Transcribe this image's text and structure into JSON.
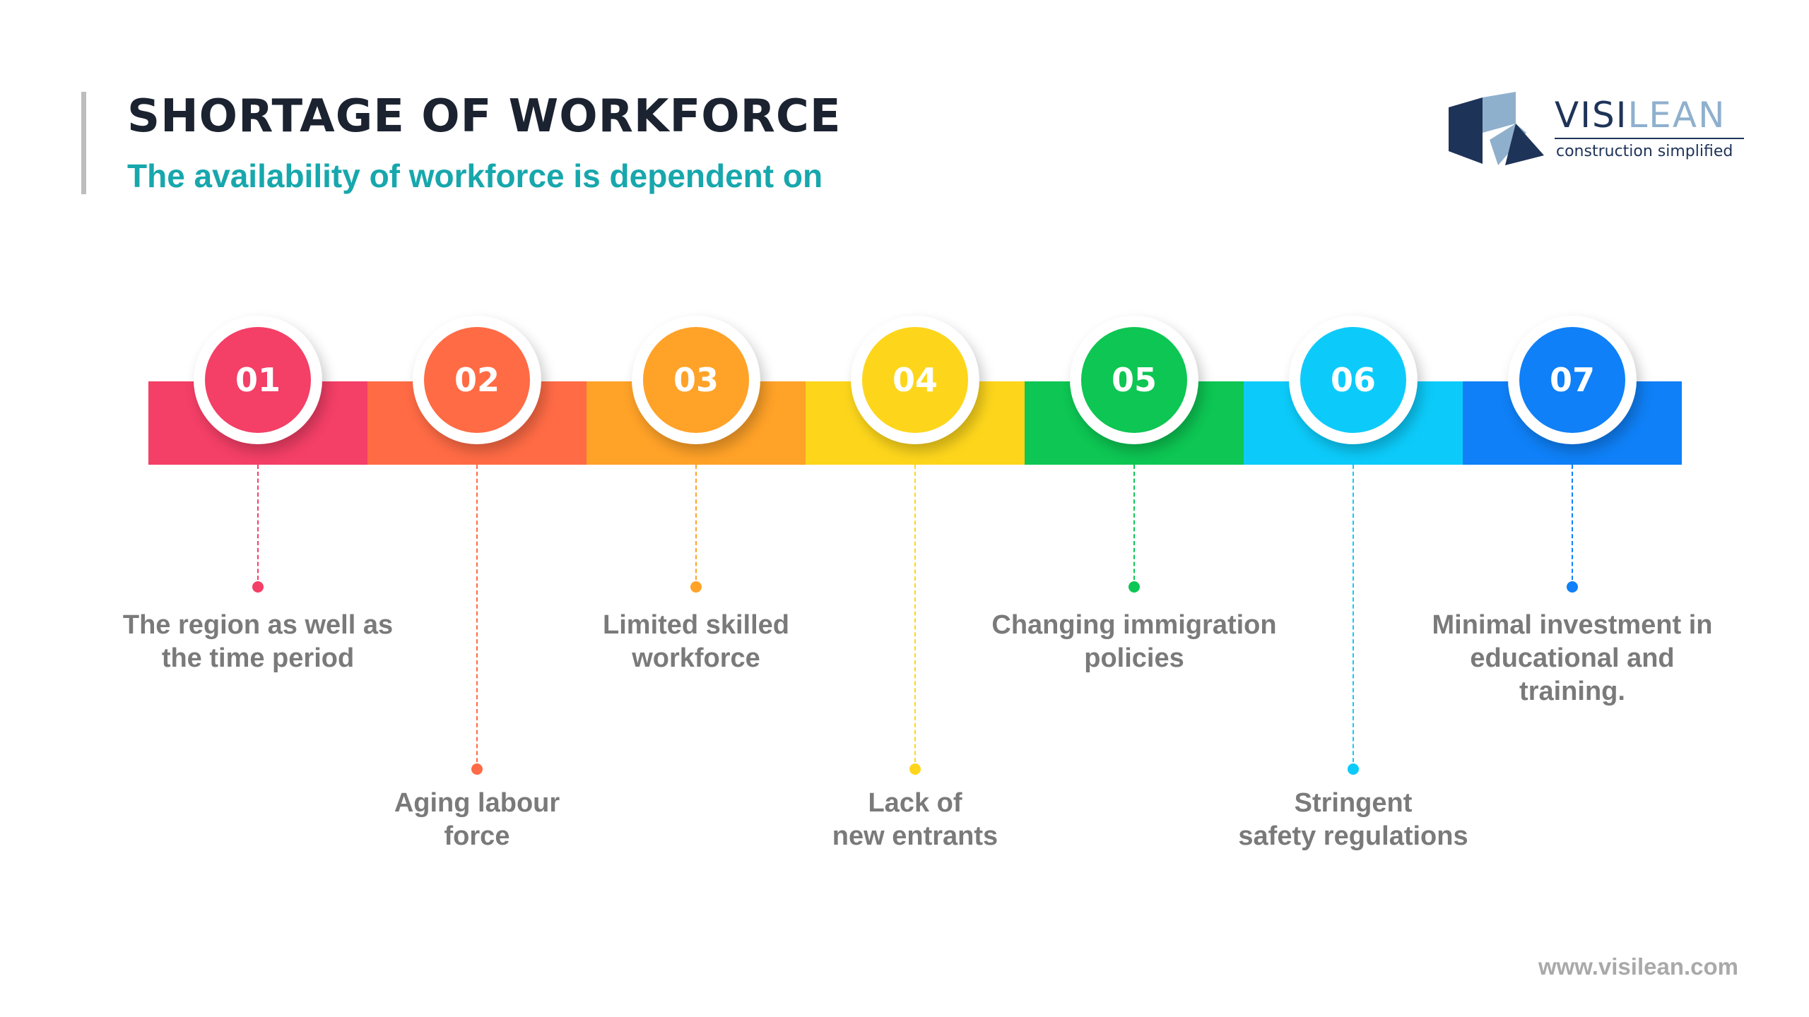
{
  "header": {
    "title": "SHORTAGE OF WORKFORCE",
    "subtitle": "The availability of workforce is dependent on"
  },
  "logo": {
    "brand_part1": "VISI",
    "brand_part2": "LEAN",
    "tagline": "construction simplified",
    "colors": {
      "dark": "#1e3358",
      "light": "#8fb0cd"
    }
  },
  "steps": [
    {
      "number": "01",
      "text": "The region as well as\nthe time period",
      "color": "#f43f67",
      "row": "upper"
    },
    {
      "number": "02",
      "text": "Aging labour\nforce",
      "color": "#ff6b45",
      "row": "lower"
    },
    {
      "number": "03",
      "text": "Limited skilled\nworkforce",
      "color": "#ffa228",
      "row": "upper"
    },
    {
      "number": "04",
      "text": "Lack of\nnew entrants",
      "color": "#fdd61c",
      "row": "lower"
    },
    {
      "number": "05",
      "text": "Changing immigration\npolicies",
      "color": "#0dc653",
      "row": "upper"
    },
    {
      "number": "06",
      "text": "Stringent\nsafety regulations",
      "color": "#0ccbfa",
      "row": "lower"
    },
    {
      "number": "07",
      "text": "Minimal investment in\neducational and\ntraining.",
      "color": "#0f80f7",
      "row": "upper"
    }
  ],
  "footer": {
    "url": "www.visilean.com"
  }
}
